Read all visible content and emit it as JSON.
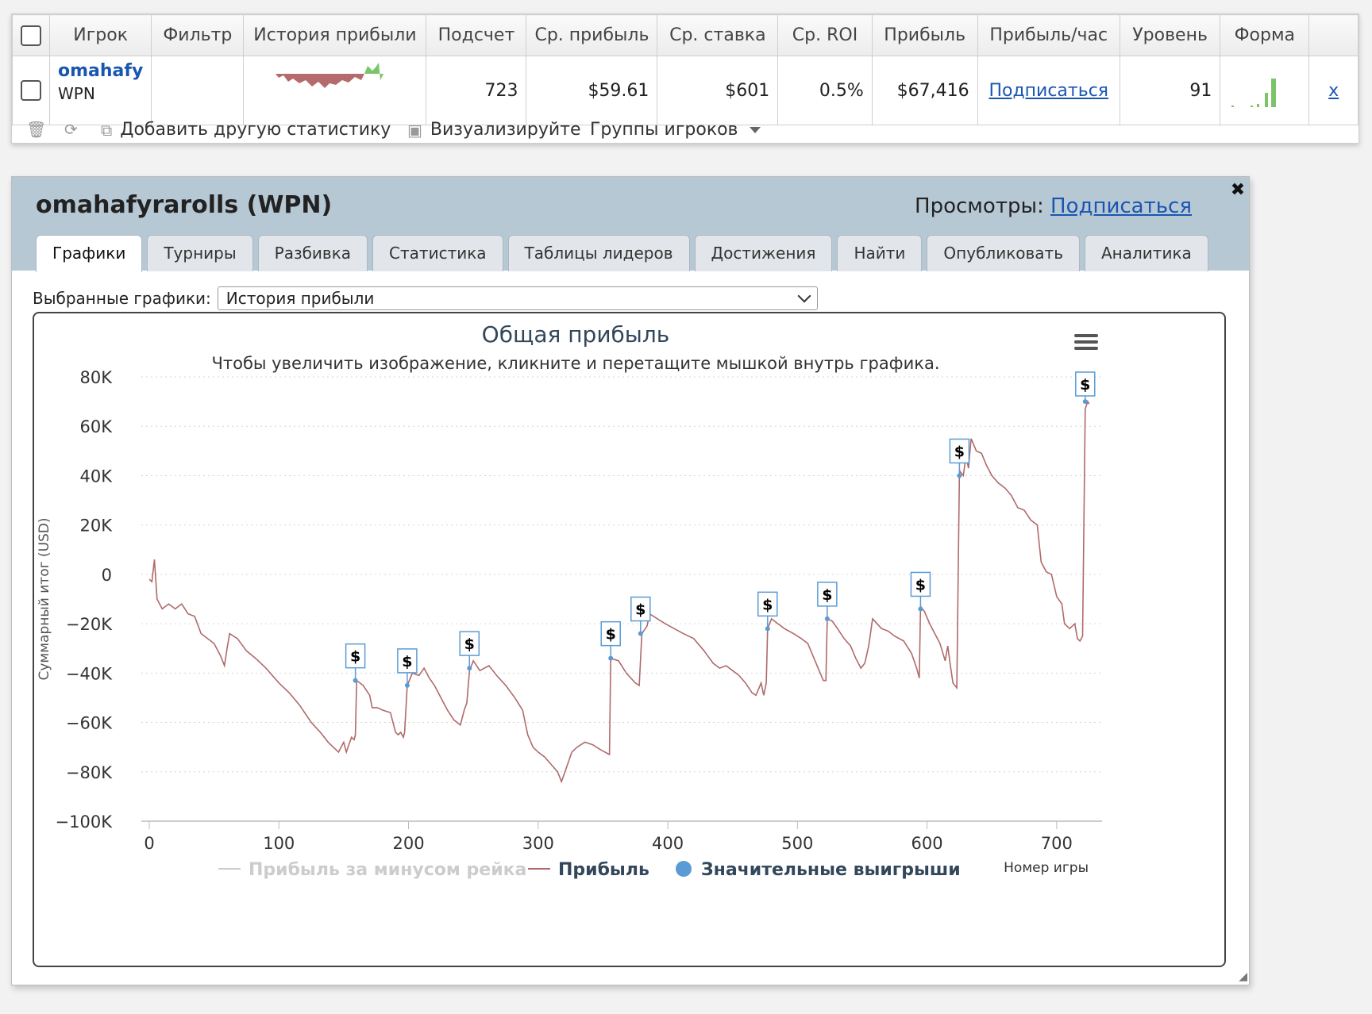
{
  "table": {
    "headers": [
      "Игрок",
      "Фильтр",
      "История прибыли",
      "Подсчет",
      "Ср. прибыль",
      "Ср. ставка",
      "Ср. ROI",
      "Прибыль",
      "Прибыль/час",
      "Уровень",
      "Форма"
    ],
    "row": {
      "player": "omahafy",
      "site": "WPN",
      "count": "723",
      "avg_profit": "$59.61",
      "avg_stake": "$601",
      "avg_roi": "0.5%",
      "profit": "$67,416",
      "profit_hour": "Подписаться",
      "level": "91",
      "remove": "x"
    }
  },
  "toolbar": {
    "add_stat": "Добавить другую статистику",
    "visualize": "Визуализируйте",
    "groups": "Группы игроков"
  },
  "profile": {
    "title": "omahafyrarolls (WPN)",
    "views_label": "Просмотры:",
    "views_link": "Подписаться",
    "close": "✖",
    "tabs": [
      "Графики",
      "Турниры",
      "Разбивка",
      "Статистика",
      "Таблицы лидеров",
      "Достижения",
      "Найти",
      "Опубликовать",
      "Аналитика"
    ],
    "selected_label": "Выбранные графики:",
    "selected_value": "История прибыли"
  },
  "colors": {
    "line": "#b06a6a",
    "marker": "#5b9bd5",
    "header_bg": "#b7c8d5",
    "link": "#1a56b0",
    "title": "#33475b"
  },
  "chart_data": {
    "type": "line",
    "title": "Общая прибыль",
    "subtitle": "Чтобы увеличить изображение, кликните и перетащите мышкой внутрь графика.",
    "ylabel": "Суммарный итог (USD)",
    "xlabel": "Номер игры",
    "xlim": [
      0,
      735
    ],
    "ylim": [
      -100000,
      80000
    ],
    "x_ticks": [
      0,
      100,
      200,
      300,
      400,
      500,
      600,
      700
    ],
    "x_tick_labels": [
      "0",
      "100",
      "200",
      "300",
      "400",
      "500",
      "600",
      "700"
    ],
    "y_ticks": [
      80000,
      60000,
      40000,
      20000,
      0,
      -20000,
      -40000,
      -60000,
      -80000,
      -100000
    ],
    "y_tick_labels": [
      "80K",
      "60K",
      "40K",
      "20K",
      "0",
      "−20K",
      "−40K",
      "−60K",
      "−80K",
      "−100K"
    ],
    "legend": [
      {
        "name": "Прибыль за минусом рейка",
        "active": false
      },
      {
        "name": "Прибыль",
        "active": true
      },
      {
        "name": "Значительные выигрыши",
        "active": true
      }
    ],
    "series": [
      {
        "name": "Прибыль",
        "points": [
          [
            0,
            -2000
          ],
          [
            2,
            -3000
          ],
          [
            4,
            6000
          ],
          [
            6,
            -10000
          ],
          [
            10,
            -14000
          ],
          [
            15,
            -12000
          ],
          [
            20,
            -14000
          ],
          [
            25,
            -12000
          ],
          [
            30,
            -16000
          ],
          [
            35,
            -17000
          ],
          [
            40,
            -24000
          ],
          [
            50,
            -28000
          ],
          [
            55,
            -33000
          ],
          [
            58,
            -37000
          ],
          [
            60,
            -30000
          ],
          [
            62,
            -24000
          ],
          [
            68,
            -26000
          ],
          [
            75,
            -31000
          ],
          [
            82,
            -34000
          ],
          [
            90,
            -38000
          ],
          [
            100,
            -44000
          ],
          [
            108,
            -48000
          ],
          [
            116,
            -53000
          ],
          [
            125,
            -60000
          ],
          [
            132,
            -64000
          ],
          [
            138,
            -68000
          ],
          [
            142,
            -70000
          ],
          [
            146,
            -72000
          ],
          [
            150,
            -68000
          ],
          [
            152,
            -72000
          ],
          [
            156,
            -66000
          ],
          [
            158,
            -67000
          ],
          [
            159,
            -65000
          ],
          [
            160,
            -43000
          ],
          [
            165,
            -45000
          ],
          [
            170,
            -49000
          ],
          [
            172,
            -54000
          ],
          [
            176,
            -54000
          ],
          [
            180,
            -55000
          ],
          [
            186,
            -56000
          ],
          [
            190,
            -64000
          ],
          [
            192,
            -65000
          ],
          [
            194,
            -64000
          ],
          [
            196,
            -66000
          ],
          [
            197,
            -64000
          ],
          [
            199,
            -45000
          ],
          [
            203,
            -40000
          ],
          [
            208,
            -41000
          ],
          [
            212,
            -38000
          ],
          [
            216,
            -42000
          ],
          [
            220,
            -45000
          ],
          [
            225,
            -50000
          ],
          [
            230,
            -55000
          ],
          [
            235,
            -59000
          ],
          [
            240,
            -61000
          ],
          [
            243,
            -55000
          ],
          [
            245,
            -52000
          ],
          [
            247,
            -39000
          ],
          [
            250,
            -35000
          ],
          [
            255,
            -39000
          ],
          [
            262,
            -37000
          ],
          [
            268,
            -41000
          ],
          [
            275,
            -45000
          ],
          [
            282,
            -50000
          ],
          [
            288,
            -55000
          ],
          [
            292,
            -65000
          ],
          [
            296,
            -70000
          ],
          [
            300,
            -72000
          ],
          [
            305,
            -74000
          ],
          [
            310,
            -77000
          ],
          [
            315,
            -80000
          ],
          [
            318,
            -84000
          ],
          [
            322,
            -78000
          ],
          [
            326,
            -72000
          ],
          [
            330,
            -70000
          ],
          [
            336,
            -68000
          ],
          [
            342,
            -69000
          ],
          [
            348,
            -71000
          ],
          [
            355,
            -73000
          ],
          [
            356,
            -34000
          ],
          [
            362,
            -35000
          ],
          [
            368,
            -40000
          ],
          [
            375,
            -44000
          ],
          [
            378,
            -45000
          ],
          [
            380,
            -24000
          ],
          [
            384,
            -21000
          ],
          [
            386,
            -16000
          ],
          [
            392,
            -18000
          ],
          [
            398,
            -20000
          ],
          [
            405,
            -22000
          ],
          [
            412,
            -24000
          ],
          [
            420,
            -26000
          ],
          [
            428,
            -31000
          ],
          [
            435,
            -36000
          ],
          [
            440,
            -38000
          ],
          [
            445,
            -37000
          ],
          [
            450,
            -39000
          ],
          [
            455,
            -41000
          ],
          [
            460,
            -44000
          ],
          [
            465,
            -48000
          ],
          [
            468,
            -49000
          ],
          [
            472,
            -44000
          ],
          [
            474,
            -49000
          ],
          [
            476,
            -44000
          ],
          [
            477,
            -22000
          ],
          [
            480,
            -18000
          ],
          [
            485,
            -20000
          ],
          [
            490,
            -22000
          ],
          [
            497,
            -24000
          ],
          [
            503,
            -26000
          ],
          [
            508,
            -28000
          ],
          [
            512,
            -33000
          ],
          [
            516,
            -38000
          ],
          [
            520,
            -43000
          ],
          [
            522,
            -43000
          ],
          [
            523,
            -18000
          ],
          [
            527,
            -19000
          ],
          [
            531,
            -22000
          ],
          [
            536,
            -26000
          ],
          [
            541,
            -29000
          ],
          [
            545,
            -34000
          ],
          [
            549,
            -38000
          ],
          [
            552,
            -36000
          ],
          [
            555,
            -29000
          ],
          [
            558,
            -18000
          ],
          [
            565,
            -22000
          ],
          [
            570,
            -23000
          ],
          [
            575,
            -25000
          ],
          [
            582,
            -27000
          ],
          [
            588,
            -32000
          ],
          [
            592,
            -38000
          ],
          [
            594,
            -42000
          ],
          [
            595,
            -13000
          ],
          [
            598,
            -15000
          ],
          [
            602,
            -20000
          ],
          [
            606,
            -24000
          ],
          [
            610,
            -28000
          ],
          [
            614,
            -35000
          ],
          [
            616,
            -29000
          ],
          [
            618,
            -37000
          ],
          [
            620,
            -44000
          ],
          [
            623,
            -46000
          ],
          [
            625,
            42000
          ],
          [
            628,
            40000
          ],
          [
            630,
            48000
          ],
          [
            632,
            43000
          ],
          [
            634,
            55000
          ],
          [
            638,
            50000
          ],
          [
            642,
            49000
          ],
          [
            646,
            44000
          ],
          [
            650,
            40000
          ],
          [
            655,
            37000
          ],
          [
            660,
            35000
          ],
          [
            665,
            32000
          ],
          [
            670,
            27000
          ],
          [
            675,
            26000
          ],
          [
            680,
            22000
          ],
          [
            685,
            20000
          ],
          [
            688,
            5000
          ],
          [
            692,
            1000
          ],
          [
            696,
            0
          ],
          [
            700,
            -9000
          ],
          [
            704,
            -12000
          ],
          [
            706,
            -20000
          ],
          [
            710,
            -22000
          ],
          [
            714,
            -20000
          ],
          [
            716,
            -26000
          ],
          [
            718,
            -27000
          ],
          [
            720,
            -25000
          ],
          [
            722,
            67000
          ],
          [
            724,
            70000
          ],
          [
            725,
            69000
          ]
        ]
      },
      {
        "name": "Значительные выигрыши",
        "points": [
          [
            159,
            -43000
          ],
          [
            199,
            -45000
          ],
          [
            247,
            -38000
          ],
          [
            356,
            -34000
          ],
          [
            379,
            -24000
          ],
          [
            477,
            -22000
          ],
          [
            523,
            -18000
          ],
          [
            595,
            -14000
          ],
          [
            625,
            40000
          ],
          [
            722,
            70000
          ]
        ],
        "label": "$"
      }
    ]
  }
}
